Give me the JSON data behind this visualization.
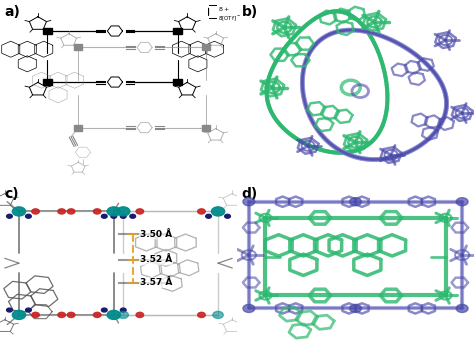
{
  "figure_width": 4.74,
  "figure_height": 3.44,
  "dpi": 100,
  "bg": "#ffffff",
  "panels": [
    "a)",
    "b)",
    "c)",
    "d)"
  ],
  "label_fontsize": 10,
  "label_fontweight": "bold",
  "green": "#2db870",
  "blue": "#4a4aaa",
  "blue_light": "#8080cc",
  "teal": "#008b8b",
  "red": "#cc2222",
  "navy": "#1a1a6e",
  "gray": "#aaaaaa",
  "darkgray": "#555555",
  "orange": "#e8a020",
  "distances": [
    "3.50 Å",
    "3.52 Å",
    "3.57 Å"
  ]
}
